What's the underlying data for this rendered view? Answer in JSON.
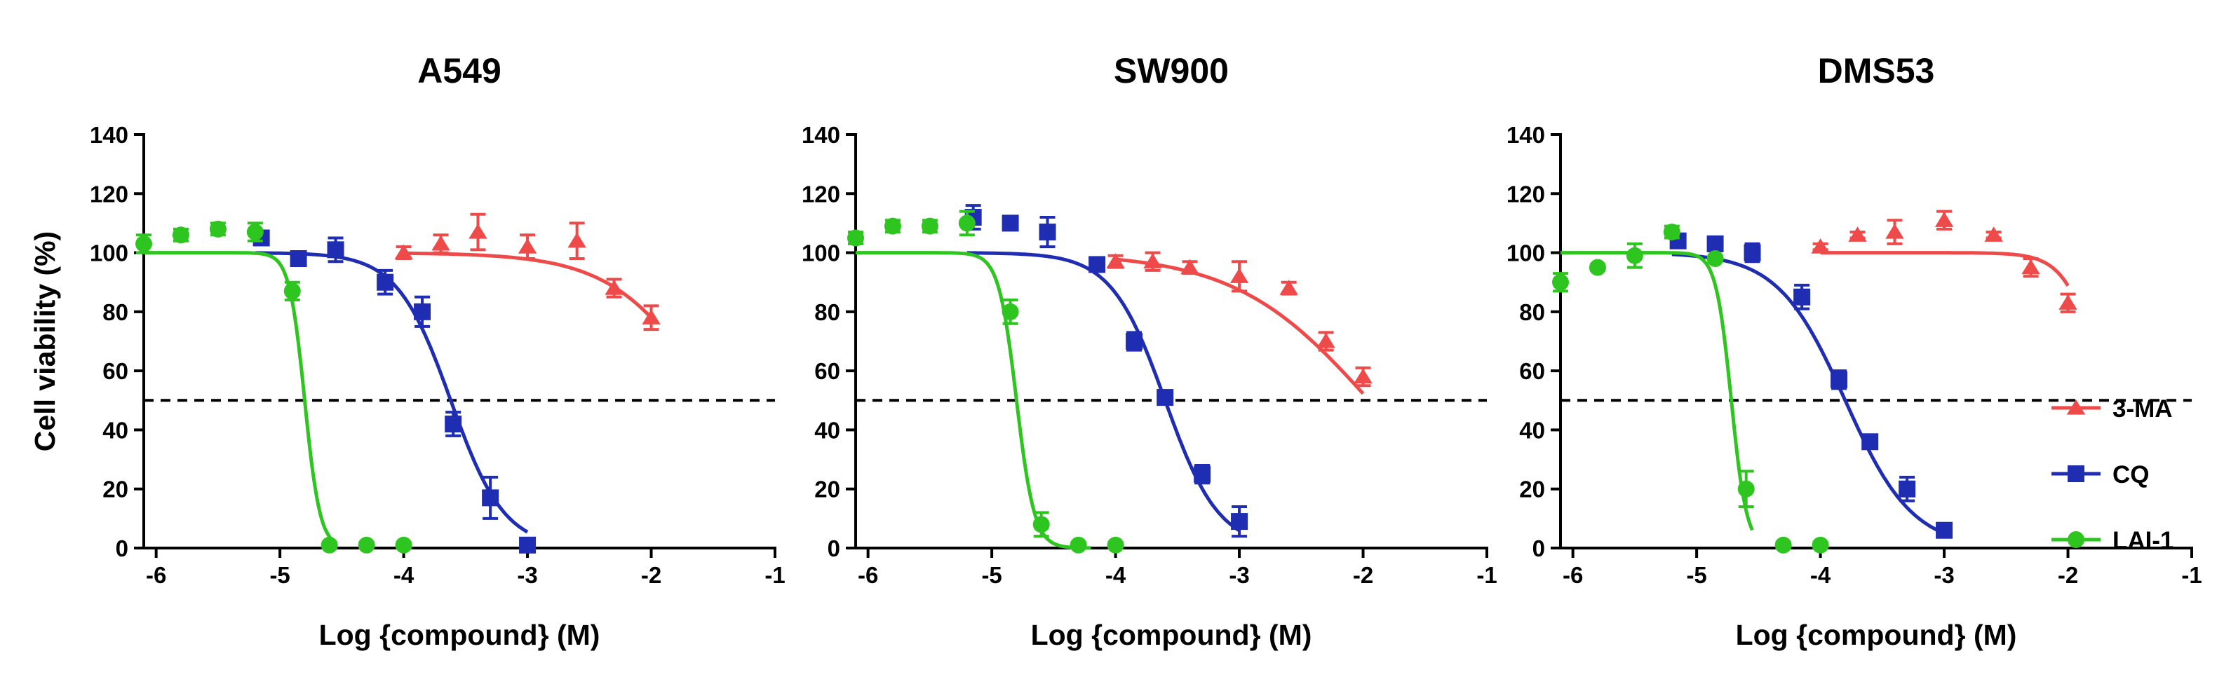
{
  "chart_data": [
    {
      "type": "scatter",
      "title": "A549",
      "xlabel": "Log {compound} (M)",
      "ylabel": "Cell viability (%)",
      "xlim": [
        -6.1,
        -1
      ],
      "ylim": [
        0,
        140
      ],
      "xticks": [
        -6,
        -5,
        -4,
        -3,
        -2,
        -1
      ],
      "yticks": [
        0,
        20,
        40,
        60,
        80,
        100,
        120,
        140
      ],
      "reference_line": 50,
      "series": [
        {
          "name": "3-MA",
          "x": [
            -4,
            -3.7,
            -3.4,
            -3,
            -2.6,
            -2.3,
            -2
          ],
          "y": [
            100,
            103,
            107,
            102,
            104,
            88,
            78
          ],
          "err": [
            2,
            3,
            6,
            4,
            6,
            3,
            4
          ],
          "fit": {
            "top": 100,
            "bottom": 0,
            "logic50": -1.5,
            "hill": 1.1,
            "from": -4,
            "to": -2
          }
        },
        {
          "name": "CQ",
          "x": [
            -5.15,
            -4.85,
            -4.55,
            -4.15,
            -3.85,
            -3.6,
            -3.3,
            -3
          ],
          "y": [
            105,
            98,
            101,
            90,
            80,
            42,
            17,
            1
          ],
          "err": [
            2,
            2,
            4,
            4,
            5,
            4,
            7,
            1
          ],
          "fit": {
            "top": 100,
            "bottom": 0,
            "logic50": -3.62,
            "hill": 2.0,
            "from": -5.2,
            "to": -3
          }
        },
        {
          "name": "LAI-1",
          "x": [
            -6.1,
            -5.8,
            -5.5,
            -5.2,
            -4.9,
            -4.6,
            -4.3,
            -4
          ],
          "y": [
            103,
            106,
            108,
            107,
            87,
            1,
            1,
            1
          ],
          "err": [
            3,
            2,
            2,
            3,
            3,
            1,
            1,
            1
          ],
          "fit": {
            "top": 100,
            "bottom": 0,
            "logic50": -4.8,
            "hill": 7,
            "from": -6.1,
            "to": -4.55
          }
        }
      ]
    },
    {
      "type": "scatter",
      "title": "SW900",
      "xlabel": "Log {compound} (M)",
      "ylabel": "",
      "xlim": [
        -6.1,
        -1
      ],
      "ylim": [
        0,
        140
      ],
      "xticks": [
        -6,
        -5,
        -4,
        -3,
        -2,
        -1
      ],
      "yticks": [
        0,
        20,
        40,
        60,
        80,
        100,
        120,
        140
      ],
      "reference_line": 50,
      "series": [
        {
          "name": "3-MA",
          "x": [
            -4,
            -3.7,
            -3.4,
            -3,
            -2.6,
            -2.3,
            -2
          ],
          "y": [
            97,
            97,
            95,
            92,
            88,
            70,
            58
          ],
          "err": [
            2,
            3,
            2,
            5,
            2,
            3,
            3
          ],
          "fit": {
            "top": 100,
            "bottom": 0,
            "logic50": -1.95,
            "hill": 0.8,
            "from": -4,
            "to": -2
          }
        },
        {
          "name": "CQ",
          "x": [
            -5.15,
            -4.85,
            -4.55,
            -4.15,
            -3.85,
            -3.6,
            -3.3,
            -3
          ],
          "y": [
            112,
            110,
            107,
            96,
            70,
            51,
            25,
            9
          ],
          "err": [
            4,
            1,
            5,
            2,
            3,
            2,
            3,
            5
          ],
          "fit": {
            "top": 100,
            "bottom": 0,
            "logic50": -3.6,
            "hill": 2.0,
            "from": -5.2,
            "to": -3
          }
        },
        {
          "name": "LAI-1",
          "x": [
            -6.1,
            -5.8,
            -5.5,
            -5.2,
            -4.85,
            -4.6,
            -4.3,
            -4
          ],
          "y": [
            105,
            109,
            109,
            110,
            80,
            8,
            1,
            1
          ],
          "err": [
            2,
            2,
            2,
            4,
            4,
            4,
            1,
            1
          ],
          "fit": {
            "top": 100,
            "bottom": 0,
            "logic50": -4.8,
            "hill": 6,
            "from": -6.1,
            "to": -4.2
          }
        }
      ]
    },
    {
      "type": "scatter",
      "title": "DMS53",
      "xlabel": "Log {compound} (M)",
      "ylabel": "",
      "xlim": [
        -6.1,
        -1
      ],
      "ylim": [
        0,
        140
      ],
      "xticks": [
        -6,
        -5,
        -4,
        -3,
        -2,
        -1
      ],
      "yticks": [
        0,
        20,
        40,
        60,
        80,
        100,
        120,
        140
      ],
      "reference_line": 50,
      "series": [
        {
          "name": "3-MA",
          "x": [
            -4,
            -3.7,
            -3.4,
            -3,
            -2.6,
            -2.3,
            -2
          ],
          "y": [
            102,
            106,
            107,
            111,
            106,
            95,
            83
          ],
          "err": [
            1,
            1,
            4,
            3,
            1,
            3,
            3
          ],
          "fit": {
            "top": 100,
            "bottom": 0,
            "logic50": -1.7,
            "hill": 3,
            "from": -4,
            "to": -2
          }
        },
        {
          "name": "CQ",
          "x": [
            -5.15,
            -4.85,
            -4.55,
            -4.15,
            -3.85,
            -3.6,
            -3.3,
            -3
          ],
          "y": [
            104,
            103,
            100,
            85,
            57,
            36,
            20,
            6
          ],
          "err": [
            2,
            1,
            3,
            4,
            3,
            2,
            4,
            1
          ],
          "fit": {
            "top": 100,
            "bottom": 0,
            "logic50": -3.8,
            "hill": 1.6,
            "from": -5.2,
            "to": -3
          }
        },
        {
          "name": "LAI-1",
          "x": [
            -6.1,
            -5.8,
            -5.5,
            -5.2,
            -4.85,
            -4.6,
            -4.3,
            -4
          ],
          "y": [
            90,
            95,
            99,
            107,
            98,
            20,
            1,
            1
          ],
          "err": [
            3,
            1,
            4,
            2,
            1,
            6,
            1,
            1
          ],
          "fit": {
            "top": 100,
            "bottom": 0,
            "logic50": -4.72,
            "hill": 7,
            "from": -6.1,
            "to": -4.55
          }
        }
      ]
    }
  ],
  "legend": [
    {
      "name": "3-MA",
      "marker": "triangle",
      "color": "#ee4a4a"
    },
    {
      "name": "CQ",
      "marker": "square",
      "color": "#1f2db3"
    },
    {
      "name": "LAI-1",
      "marker": "circle",
      "color": "#2ec520"
    }
  ],
  "colors": {
    "3-MA": "#ee4a4a",
    "CQ": "#1f2db3",
    "LAI-1": "#2ec520",
    "axis": "#000000"
  }
}
